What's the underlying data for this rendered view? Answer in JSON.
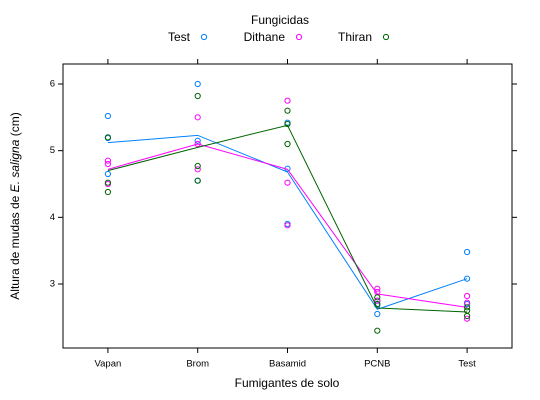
{
  "chart_data": {
    "type": "scatter-line",
    "legend_title": "Fungicidas",
    "xlabel": "Fumigantes de solo",
    "ylabel": {
      "before": "Altura de mudas de ",
      "italic": "E. saligna",
      "after": " (cm)"
    },
    "categories": [
      "Vapan",
      "Brom",
      "Basamid",
      "PCNB",
      "Test"
    ],
    "ylim": [
      2.04,
      6.3
    ],
    "yticks": [
      3,
      4,
      5,
      6
    ],
    "series": [
      {
        "name": "Test",
        "color": "#0080ff",
        "values": [
          5.12,
          5.23,
          4.68,
          2.62,
          3.08
        ],
        "points": [
          [
            5.52,
            5.19,
            4.65
          ],
          [
            6.0,
            5.15,
            4.55
          ],
          [
            5.42,
            4.73,
            3.9
          ],
          [
            2.75,
            2.68,
            2.55
          ],
          [
            3.48,
            3.08,
            2.7
          ]
        ]
      },
      {
        "name": "Dithane",
        "color": "#ff00ff",
        "values": [
          4.72,
          5.1,
          4.72,
          2.85,
          2.65
        ],
        "points": [
          [
            4.85,
            4.8,
            4.5
          ],
          [
            5.5,
            5.1,
            4.72
          ],
          [
            5.75,
            4.52,
            3.88
          ],
          [
            2.93,
            2.88,
            2.75
          ],
          [
            2.82,
            2.72,
            2.48
          ]
        ]
      },
      {
        "name": "Thiran",
        "color": "#006400",
        "values": [
          4.7,
          5.05,
          5.38,
          2.64,
          2.58
        ],
        "points": [
          [
            5.2,
            4.52,
            4.38
          ],
          [
            5.82,
            4.77,
            4.55
          ],
          [
            5.6,
            5.4,
            5.1
          ],
          [
            2.8,
            2.7,
            2.3
          ],
          [
            2.65,
            2.6,
            2.52
          ]
        ]
      }
    ]
  }
}
